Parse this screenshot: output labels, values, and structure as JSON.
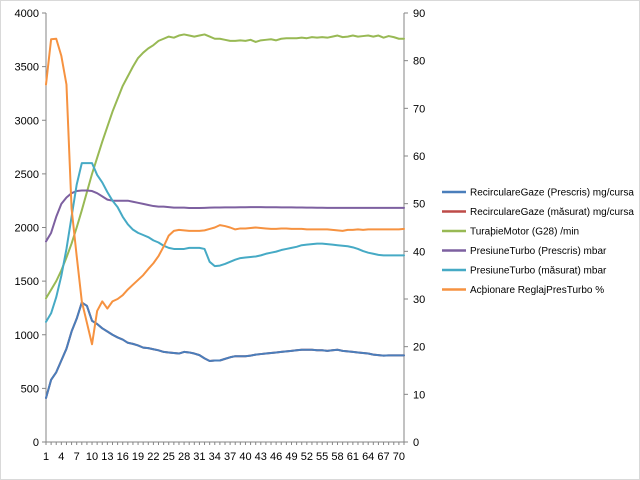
{
  "chart_data": {
    "type": "line",
    "title": "",
    "xlabel": "",
    "y_left": {
      "min": 0,
      "max": 4000,
      "step": 500,
      "ticks": [
        "0",
        "500",
        "1000",
        "1500",
        "2000",
        "2500",
        "3000",
        "3500",
        "4000"
      ]
    },
    "y_right": {
      "min": 0,
      "max": 90,
      "step": 10,
      "ticks": [
        "0",
        "10",
        "20",
        "30",
        "40",
        "50",
        "60",
        "70",
        "80",
        "90"
      ]
    },
    "x_count": 71,
    "x_tick_labels": [
      "1",
      "4",
      "7",
      "10",
      "13",
      "16",
      "19",
      "22",
      "25",
      "28",
      "31",
      "34",
      "37",
      "40",
      "43",
      "46",
      "49",
      "52",
      "55",
      "58",
      "61",
      "64",
      "67",
      "70"
    ],
    "legend_position": "right",
    "series": [
      {
        "name": "RecirculareGaze (Prescris)  mg/cursa",
        "axis": "left",
        "color": "#4a7ebb",
        "values": [
          410,
          580,
          650,
          760,
          870,
          1030,
          1150,
          1300,
          1270,
          1130,
          1100,
          1060,
          1030,
          1000,
          975,
          955,
          925,
          915,
          900,
          880,
          875,
          865,
          855,
          840,
          835,
          830,
          825,
          840,
          835,
          825,
          810,
          780,
          755,
          760,
          760,
          775,
          790,
          800,
          800,
          800,
          805,
          815,
          820,
          825,
          830,
          835,
          840,
          845,
          850,
          855,
          860,
          860,
          860,
          855,
          855,
          850,
          855,
          860,
          850,
          845,
          840,
          835,
          830,
          825,
          815,
          810,
          805,
          808,
          808,
          808,
          808
        ]
      },
      {
        "name": "RecirculareGaze (măsurat)  mg/cursa",
        "axis": "left",
        "color": "#be4b48",
        "values": [
          410,
          580,
          650,
          760,
          870,
          1030,
          1150,
          1300,
          1270,
          1130,
          1100,
          1060,
          1030,
          1000,
          975,
          955,
          925,
          915,
          900,
          880,
          875,
          865,
          855,
          840,
          835,
          830,
          825,
          840,
          835,
          825,
          810,
          780,
          755,
          760,
          760,
          775,
          790,
          800,
          800,
          800,
          805,
          815,
          820,
          825,
          830,
          835,
          840,
          845,
          850,
          855,
          860,
          860,
          860,
          855,
          855,
          850,
          855,
          860,
          850,
          845,
          840,
          835,
          830,
          825,
          815,
          810,
          805,
          808,
          808,
          808,
          808
        ]
      },
      {
        "name": "TuraþieMotor (G28)  /min",
        "axis": "left",
        "color": "#98b954",
        "values": [
          1340,
          1420,
          1500,
          1600,
          1720,
          1850,
          2000,
          2160,
          2330,
          2500,
          2650,
          2800,
          2940,
          3080,
          3200,
          3320,
          3410,
          3500,
          3580,
          3630,
          3670,
          3700,
          3740,
          3760,
          3780,
          3770,
          3790,
          3800,
          3790,
          3780,
          3790,
          3800,
          3780,
          3760,
          3760,
          3750,
          3740,
          3740,
          3745,
          3740,
          3750,
          3730,
          3745,
          3750,
          3755,
          3745,
          3760,
          3765,
          3765,
          3765,
          3770,
          3765,
          3775,
          3770,
          3775,
          3770,
          3780,
          3790,
          3775,
          3780,
          3790,
          3780,
          3785,
          3790,
          3780,
          3790,
          3770,
          3785,
          3775,
          3760,
          3760
        ]
      },
      {
        "name": "PresiuneTurbo (Prescris)  mbar",
        "axis": "left",
        "color": "#7d60a0",
        "values": [
          1870,
          1950,
          2100,
          2220,
          2280,
          2320,
          2340,
          2345,
          2345,
          2340,
          2320,
          2290,
          2260,
          2250,
          2250,
          2250,
          2250,
          2240,
          2230,
          2220,
          2210,
          2200,
          2195,
          2195,
          2190,
          2185,
          2185,
          2185,
          2182,
          2182,
          2182,
          2183,
          2185,
          2187,
          2187,
          2188,
          2188,
          2188,
          2189,
          2189,
          2190,
          2190,
          2190,
          2189,
          2189,
          2189,
          2188,
          2188,
          2188,
          2186,
          2186,
          2185,
          2185,
          2184,
          2184,
          2183,
          2183,
          2183,
          2183,
          2183,
          2183,
          2183,
          2183,
          2183,
          2183,
          2183,
          2183,
          2183,
          2183,
          2183,
          2183
        ]
      },
      {
        "name": "PresiuneTurbo (măsurat)  mbar",
        "axis": "left",
        "color": "#46aac5",
        "values": [
          1120,
          1200,
          1350,
          1550,
          1800,
          2100,
          2400,
          2600,
          2600,
          2600,
          2490,
          2420,
          2330,
          2250,
          2190,
          2100,
          2030,
          1980,
          1950,
          1930,
          1910,
          1880,
          1860,
          1830,
          1810,
          1800,
          1800,
          1800,
          1810,
          1810,
          1810,
          1800,
          1680,
          1640,
          1645,
          1660,
          1680,
          1700,
          1715,
          1720,
          1725,
          1730,
          1740,
          1755,
          1765,
          1775,
          1790,
          1800,
          1810,
          1820,
          1835,
          1840,
          1845,
          1850,
          1850,
          1845,
          1840,
          1835,
          1830,
          1825,
          1815,
          1800,
          1780,
          1765,
          1755,
          1745,
          1740,
          1740,
          1740,
          1740,
          1740
        ]
      },
      {
        "name": "Acþionare ReglajPresTurbo  %",
        "axis": "right",
        "color": "#f69240",
        "values": [
          75,
          84.5,
          84.6,
          81,
          75,
          49,
          39,
          29.5,
          25,
          20.5,
          27.5,
          29.5,
          28,
          29.5,
          30,
          30.8,
          32,
          33,
          34,
          35,
          36.3,
          37.5,
          39,
          41,
          43.3,
          44.3,
          44.5,
          44.4,
          44.3,
          44.3,
          44.3,
          44.4,
          44.7,
          45,
          45.5,
          45.3,
          45,
          44.6,
          44.8,
          44.8,
          44.9,
          45,
          44.9,
          44.8,
          44.7,
          44.7,
          44.8,
          44.8,
          44.7,
          44.7,
          44.7,
          44.6,
          44.6,
          44.6,
          44.6,
          44.6,
          44.5,
          44.4,
          44.3,
          44.5,
          44.5,
          44.6,
          44.5,
          44.6,
          44.6,
          44.6,
          44.6,
          44.6,
          44.6,
          44.6,
          44.7
        ]
      }
    ]
  }
}
